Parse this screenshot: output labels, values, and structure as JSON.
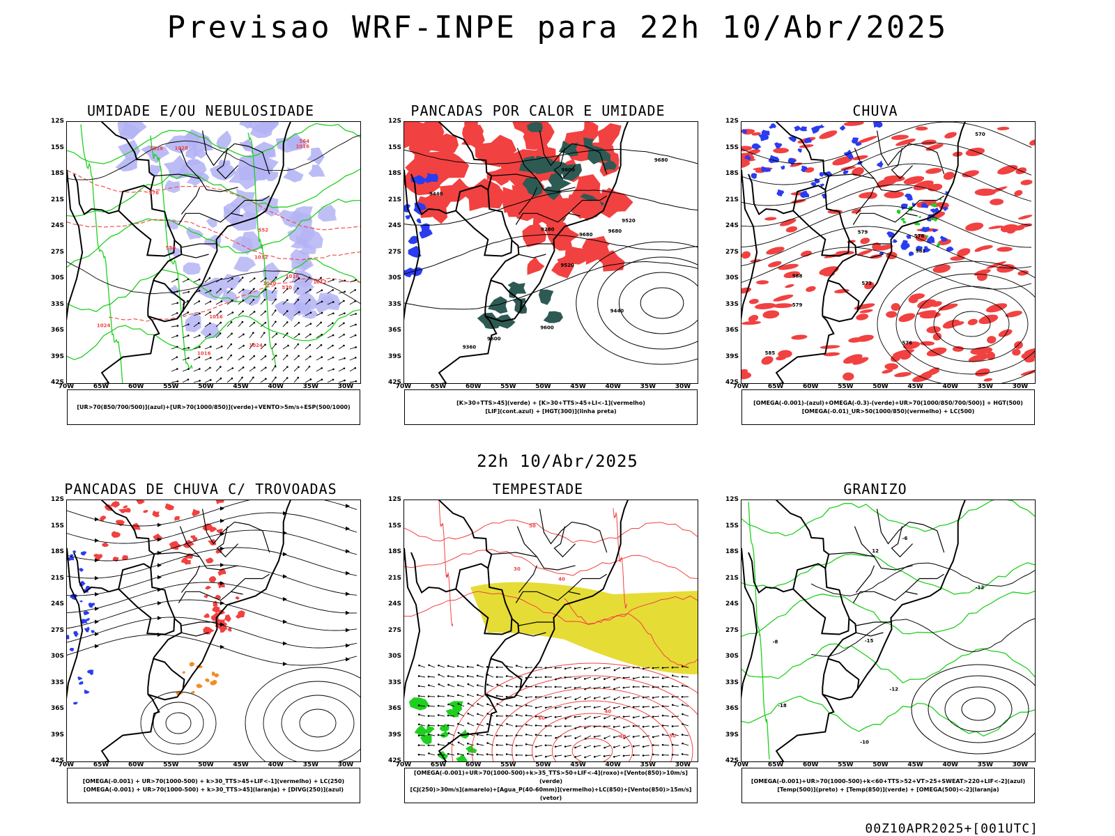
{
  "header": {
    "title": "Previsao WRF-INPE  para 22h 10/Abr/2025",
    "mid_title": "22h 10/Abr/2025",
    "footer": "00Z10APR2025+[001UTC]"
  },
  "axes": {
    "lat_labels": [
      "12S",
      "15S",
      "18S",
      "21S",
      "24S",
      "27S",
      "30S",
      "33S",
      "36S",
      "39S",
      "42S"
    ],
    "lon_labels": [
      "70W",
      "65W",
      "60W",
      "55W",
      "50W",
      "45W",
      "40W",
      "35W",
      "30W"
    ]
  },
  "colors": {
    "red": "#f14141",
    "green": "#1fcf1f",
    "lavender": "#b4b4f5",
    "blue": "#2a3cf0",
    "dark_teal": "#2e5a54",
    "yellow": "#e6dc36",
    "orange": "#f28c28"
  },
  "panels": [
    {
      "title": "UMIDADE E/OU NEBULOSIDADE",
      "legend_line1": "[UR>70(850/700/500)](azul)+[UR>70(1000/850)](verde)+VENTO>5m/s+ESP(500/1000)",
      "legend_line2": "",
      "contour_labels": [
        "1012",
        "1016",
        "1016",
        "1016",
        "1016",
        "1020",
        "1024",
        "1028",
        "1024",
        "1012",
        "1016",
        "570",
        "576",
        "564",
        "558",
        "552"
      ]
    },
    {
      "title": "PANCADAS POR CALOR E UMIDADE",
      "legend_line1": "[K>30+TTS>45](verde) + [K>30+TTS>45+LI<-1](vermelho)",
      "legend_line2": "[LIF](cont.azul) + [HGT(300)](linha preta)",
      "contour_labels": [
        "9680",
        "9680",
        "9600",
        "9600",
        "9520",
        "9520",
        "9440",
        "9440",
        "9360",
        "9280",
        "9600",
        "9680"
      ]
    },
    {
      "title": "CHUVA",
      "legend_line1": "[OMEGA(-0.001)-(azul)+OMEGA(-0.3)-(verde)+UR>70(1000/850/700/500)] + HGT(500)",
      "legend_line2": "[OMEGA(-0.01)_UR>50(1000/850)(vermelho) + LC(500)",
      "contour_labels": [
        "588",
        "585",
        "582",
        "579",
        "576",
        "573",
        "570",
        "579",
        "576"
      ]
    },
    {
      "title": "PANCADAS DE CHUVA C/ TROVOADAS",
      "legend_line1": "[OMEGA(-0.001) + UR>70(1000-500) + k>30_TTS>45+LIF<-1](vermelho) + LC(250)",
      "legend_line2": "[OMEGA(-0.001) + UR>70(1000-500) + k>30_TTS>45](laranja) + [DIVG(250)](azul)",
      "contour_labels": []
    },
    {
      "title": "TEMPESTADE",
      "legend_line1": "[OMEGA(-0.001)+UR>70(1000-500)+k>35_TTS>50+LIF<-4](roxo)+[Vento(850)>10m/s](verde)",
      "legend_line2": "[CJ(250)>30m/s](amarelo)+[Agua_P(40-60mm)](vermelho)+LC(850)+[Vento(850)>15m/s](vetor)",
      "contour_labels": [
        "40",
        "50",
        "60",
        "40",
        "30",
        "40",
        "50"
      ]
    },
    {
      "title": "GRANIZO",
      "legend_line1": "[OMEGA(-0.001)+UR>70(1000-500)+k<60+TTS>52+VT>25+SWEAT>220+LIF<-2](azul)",
      "legend_line2": "[Temp(500)](preto) + [Temp(850)](verde) + [OMEGA(500)<-2](laranja)",
      "contour_labels": [
        "-12",
        "-12",
        "-15",
        "-18",
        "12",
        "-10",
        "-8",
        "-6"
      ]
    }
  ]
}
